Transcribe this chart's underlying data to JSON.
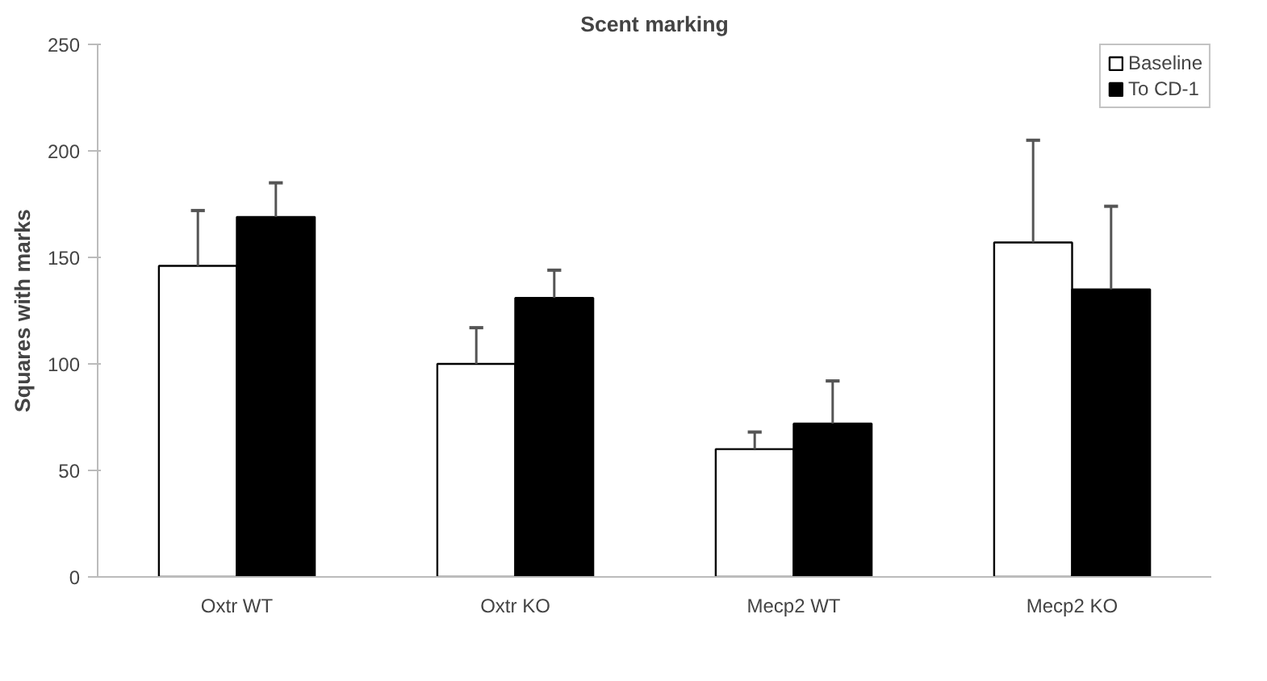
{
  "chart_data": {
    "type": "bar",
    "title": "Scent marking",
    "ylabel": "Squares with marks",
    "categories": [
      "Oxtr WT",
      "Oxtr KO",
      "Mecp2 WT",
      "Mecp2 KO"
    ],
    "series": [
      {
        "name": "Baseline",
        "color": "#ffffff",
        "values": [
          146,
          100,
          60,
          157
        ],
        "errors": [
          [
            146,
            172
          ],
          [
            100,
            117
          ],
          [
            60,
            68
          ],
          [
            157,
            205
          ]
        ]
      },
      {
        "name": "To CD-1",
        "color": "#000000",
        "values": [
          169,
          131,
          72,
          135
        ],
        "errors": [
          [
            169,
            185
          ],
          [
            131,
            144
          ],
          [
            72,
            92
          ],
          [
            135,
            174
          ]
        ]
      }
    ],
    "ylim": [
      0,
      250
    ],
    "yticks": [
      0,
      50,
      100,
      150,
      200,
      250
    ],
    "grid": false,
    "legend": "top right"
  }
}
